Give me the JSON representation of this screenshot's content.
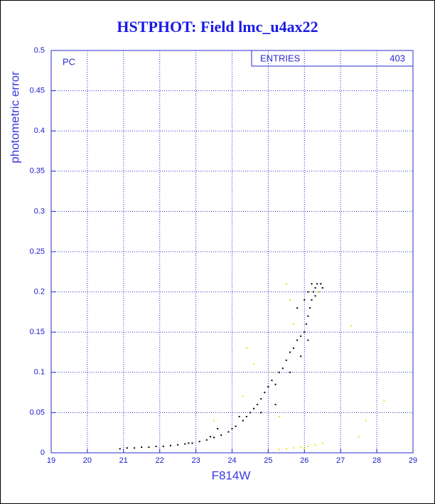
{
  "chart_data": {
    "type": "scatter",
    "title": "HSTPHOT: Field lmc_u4ax22",
    "x_label": "F814W",
    "y_label": "photometric error",
    "annotation": "PC",
    "stats_label": "ENTRIES",
    "stats_value": 403,
    "xlim": [
      19,
      29
    ],
    "xticks": [
      19,
      20,
      21,
      22,
      23,
      24,
      25,
      26,
      27,
      28,
      29
    ],
    "ylim": [
      0,
      0.5
    ],
    "yticks": [
      0,
      0.05,
      0.1,
      0.15,
      0.2,
      0.25,
      0.3,
      0.35,
      0.4,
      0.45,
      0.5
    ],
    "grid": true,
    "series": [
      {
        "color": "#000000",
        "x": [
          20.9,
          21.1,
          21.3,
          21.5,
          21.7,
          21.9,
          22.1,
          22.3,
          22.5,
          22.7,
          22.9,
          23.1,
          23.3,
          23.5,
          23.6,
          23.7,
          23.9,
          24.0,
          24.1,
          24.3,
          24.4,
          24.5,
          24.6,
          24.7,
          24.8,
          24.9,
          25.0,
          25.1,
          25.2,
          25.3,
          25.4,
          25.5,
          25.6,
          25.7,
          25.8,
          25.9,
          26.0,
          26.05,
          26.1,
          26.15,
          26.2,
          26.25,
          26.3,
          26.35,
          26.4,
          26.45,
          26.2,
          26.1,
          26.3,
          26.5,
          25.9,
          26.1,
          25.6,
          25.2,
          24.8,
          25.8,
          26.0,
          22.8,
          23.4,
          24.2
        ],
        "y": [
          0.005,
          0.006,
          0.006,
          0.007,
          0.007,
          0.008,
          0.008,
          0.009,
          0.01,
          0.011,
          0.012,
          0.014,
          0.016,
          0.019,
          0.03,
          0.022,
          0.026,
          0.03,
          0.033,
          0.04,
          0.045,
          0.05,
          0.055,
          0.06,
          0.067,
          0.075,
          0.082,
          0.09,
          0.085,
          0.1,
          0.105,
          0.115,
          0.125,
          0.13,
          0.14,
          0.145,
          0.15,
          0.16,
          0.17,
          0.18,
          0.19,
          0.2,
          0.205,
          0.21,
          0.2,
          0.21,
          0.21,
          0.2,
          0.195,
          0.205,
          0.12,
          0.14,
          0.1,
          0.06,
          0.05,
          0.18,
          0.19,
          0.012,
          0.02,
          0.045
        ]
      },
      {
        "color": "#e8e800",
        "x": [
          25.5,
          25.7,
          25.9,
          26.1,
          26.3,
          26.5,
          25.3,
          26.0,
          27.3,
          27.7,
          28.2,
          27.5,
          25.6,
          25.5,
          25.7,
          24.4,
          24.6,
          24.3,
          23.5,
          25.1,
          25.3,
          26.4
        ],
        "y": [
          0.005,
          0.006,
          0.007,
          0.008,
          0.01,
          0.012,
          0.004,
          0.005,
          0.158,
          0.04,
          0.065,
          0.02,
          0.19,
          0.21,
          0.16,
          0.13,
          0.11,
          0.07,
          0.04,
          0.1,
          0.045,
          0.2
        ]
      }
    ]
  }
}
